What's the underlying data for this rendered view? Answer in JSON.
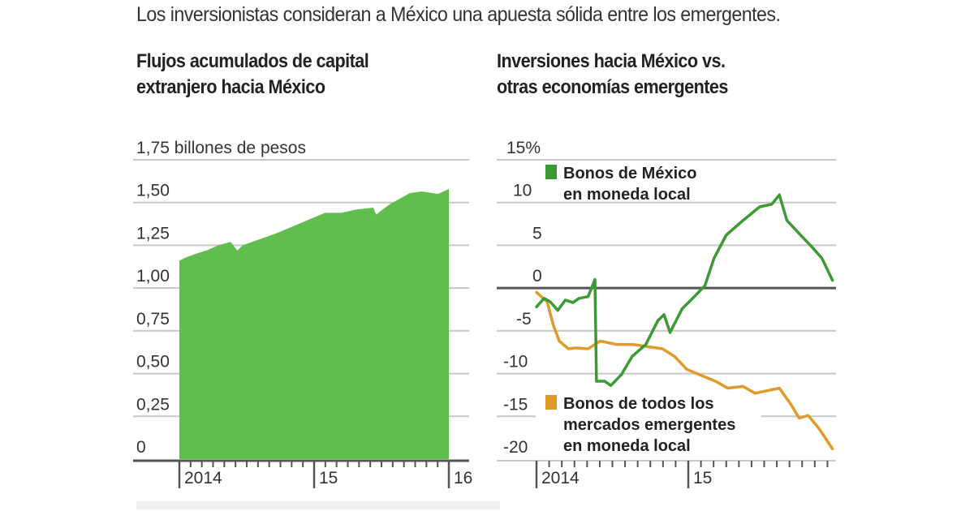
{
  "headline": "Los inversionistas consideran a México una apuesta sólida entre los emergentes.",
  "colors": {
    "area_green": "#62bd4f",
    "mexico_line": "#3c9a35",
    "em_line": "#e09a2c",
    "grid": "#c8c8c8",
    "axis": "#555555"
  },
  "chart_data": [
    {
      "type": "area",
      "title": "Flujos acumulados de capital extranjero hacia México",
      "title_lines": [
        "Flujos acumulados de capital",
        "extranjero hacia México"
      ],
      "ylabel": "billones de pesos",
      "unit_label": "1,75 billones de pesos",
      "ylim": [
        0,
        1.75
      ],
      "yticks": [
        0,
        0.25,
        0.5,
        0.75,
        1.0,
        1.25,
        1.5,
        1.75
      ],
      "ytick_labels": [
        "0",
        "0,25",
        "0,50",
        "0,75",
        "1,00",
        "1,25",
        "1,50",
        "1,75 billones de pesos"
      ],
      "xlim": [
        2014.0,
        2016.0
      ],
      "xticks_major": [
        2014,
        2015,
        2016
      ],
      "xtick_labels": [
        "2014",
        "15",
        "16"
      ],
      "minor_ticks_per_year": 12,
      "grid": true,
      "x": [
        2014.0,
        2014.05,
        2014.12,
        2014.2,
        2014.29,
        2014.38,
        2014.43,
        2014.47,
        2014.54,
        2014.72,
        2014.87,
        2014.99,
        2015.08,
        2015.2,
        2015.32,
        2015.44,
        2015.46,
        2015.56,
        2015.71,
        2015.8,
        2015.92,
        2016.0
      ],
      "values": [
        1.16,
        1.18,
        1.2,
        1.22,
        1.25,
        1.27,
        1.22,
        1.25,
        1.27,
        1.32,
        1.37,
        1.41,
        1.44,
        1.44,
        1.46,
        1.47,
        1.43,
        1.49,
        1.555,
        1.565,
        1.55,
        1.58
      ]
    },
    {
      "type": "line",
      "title": "Inversiones hacia México vs. otras economías emergentes",
      "title_lines": [
        "Inversiones hacia México vs.",
        "otras economías emergentes"
      ],
      "ylabel": "%",
      "ylim": [
        -20,
        15
      ],
      "yticks": [
        -20,
        -15,
        -10,
        -5,
        0,
        5,
        10,
        15
      ],
      "ytick_labels": [
        "-20",
        "-15",
        "-10",
        "-5",
        "0",
        "5",
        "10",
        "15%"
      ],
      "xlim": [
        2014.0,
        2015.95
      ],
      "xticks_major": [
        2014,
        2015
      ],
      "xtick_labels": [
        "2014",
        "15"
      ],
      "minor_ticks_per_year": 12,
      "grid": true,
      "series": [
        {
          "name": "Bonos de México en moneda local",
          "legend_lines": [
            "Bonos de México",
            "en moneda local"
          ],
          "color": "#3c9a35",
          "x": [
            2014.0,
            2014.05,
            2014.09,
            2014.14,
            2014.19,
            2014.24,
            2014.28,
            2014.34,
            2014.385,
            2014.395,
            2014.45,
            2014.49,
            2014.56,
            2014.63,
            2014.72,
            2014.8,
            2014.84,
            2014.88,
            2014.96,
            2015.04,
            2015.11,
            2015.17,
            2015.25,
            2015.36,
            2015.47,
            2015.55,
            2015.6,
            2015.65,
            2015.74,
            2015.82,
            2015.88,
            2015.95
          ],
          "values": [
            -2.2,
            -1.2,
            -1.6,
            -2.6,
            -1.4,
            -1.7,
            -1.2,
            -1.0,
            1.0,
            -10.9,
            -10.9,
            -11.4,
            -10.1,
            -8.0,
            -6.6,
            -3.8,
            -3.1,
            -5.2,
            -2.4,
            -1.0,
            0.3,
            3.5,
            6.2,
            7.9,
            9.5,
            9.8,
            10.9,
            7.9,
            6.2,
            4.7,
            3.5,
            0.9
          ]
        },
        {
          "name": "Bonos de todos los mercados emergentes en moneda local",
          "legend_lines": [
            "Bonos de todos los",
            "mercados emergentes",
            "en moneda local"
          ],
          "color": "#e09a2c",
          "x": [
            2014.0,
            2014.07,
            2014.11,
            2014.15,
            2014.21,
            2014.26,
            2014.34,
            2014.42,
            2014.53,
            2014.64,
            2014.75,
            2014.83,
            2014.91,
            2014.99,
            2015.07,
            2015.18,
            2015.26,
            2015.36,
            2015.44,
            2015.6,
            2015.68,
            2015.73,
            2015.79,
            2015.86,
            2015.95
          ],
          "values": [
            -0.5,
            -1.6,
            -4.3,
            -6.2,
            -7.1,
            -7.0,
            -7.1,
            -6.2,
            -6.6,
            -6.6,
            -6.9,
            -7.1,
            -8.0,
            -9.5,
            -10.1,
            -10.9,
            -11.7,
            -11.5,
            -12.3,
            -11.7,
            -13.7,
            -15.2,
            -14.9,
            -16.4,
            -18.8
          ]
        }
      ]
    }
  ]
}
